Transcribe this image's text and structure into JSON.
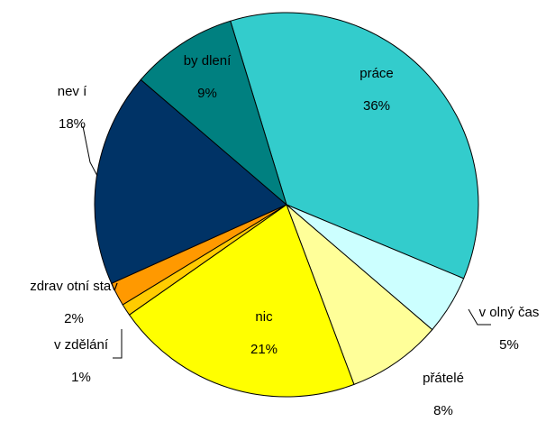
{
  "chart_data": {
    "type": "pie",
    "categories": [
      "práce",
      "v olný čas",
      "přátelé",
      "nic",
      "v zdělání",
      "zdrav otní stav",
      "nev í",
      "by dlení"
    ],
    "values": [
      36,
      5,
      8,
      21,
      1,
      2,
      18,
      9
    ],
    "value_labels": [
      "36%",
      "5%",
      "8%",
      "21%",
      "1%",
      "2%",
      "18%",
      "9%"
    ],
    "colors": [
      "#33cccc",
      "#ccffff",
      "#ffff99",
      "#ffff00",
      "#ffcc00",
      "#ff9900",
      "#003366",
      "#008080"
    ]
  }
}
